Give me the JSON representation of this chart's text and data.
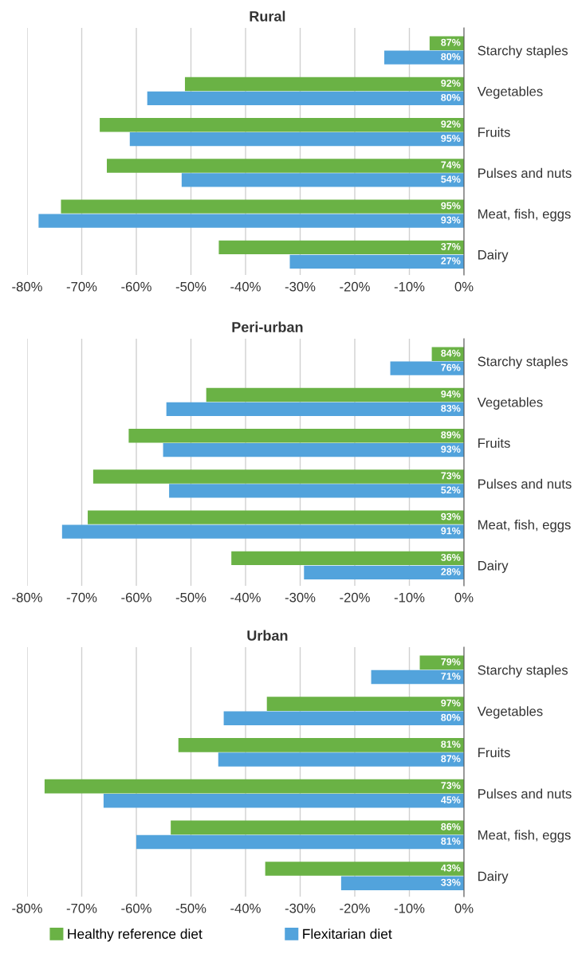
{
  "chart_data": [
    {
      "type": "bar",
      "orientation": "horizontal",
      "title": "Rural",
      "categories": [
        "Starchy staples",
        "Vegetables",
        "Fruits",
        "Pulses and nuts",
        "Meat, fish, eggs",
        "Dairy"
      ],
      "series": [
        {
          "name": "Healthy reference diet",
          "color": "#6ab245",
          "values": [
            -6.3,
            -51.1,
            -66.7,
            -65.4,
            -73.8,
            -44.9
          ]
        },
        {
          "name": "Flexitarian diet",
          "color": "#52a3dc",
          "values": [
            -14.6,
            -58.0,
            -61.2,
            -51.7,
            -77.9,
            -31.9
          ]
        }
      ],
      "annotations": [
        {
          "text": "87%",
          "y": "Starchy staples"
        },
        {
          "text": "80%",
          "y": "Starchy staples"
        },
        {
          "text": "92%",
          "y": "Vegetables"
        },
        {
          "text": "80%",
          "y": "Vegetables"
        },
        {
          "text": "92%",
          "y": "Fruits"
        },
        {
          "text": "95%",
          "y": "Fruits"
        },
        {
          "text": "74%",
          "y": "Pulses and nuts"
        },
        {
          "text": "54%",
          "y": "Pulses and nuts"
        },
        {
          "text": "95%",
          "y": "Meat, fish, eggs"
        },
        {
          "text": "93%",
          "y": "Meat, fish, eggs"
        },
        {
          "text": "37%",
          "y": "Dairy"
        },
        {
          "text": "27%",
          "y": "Dairy"
        }
      ],
      "xlim": [
        -80,
        0
      ],
      "xticks": [
        {
          "value": -80,
          "label": "-80%"
        },
        {
          "value": -70,
          "label": "-70%"
        },
        {
          "value": -60,
          "label": "-60%"
        },
        {
          "value": -50,
          "label": "-50%"
        },
        {
          "value": -40,
          "label": "-40%"
        },
        {
          "value": -30,
          "label": "-30%"
        },
        {
          "value": -20,
          "label": "-20%"
        },
        {
          "value": -10,
          "label": "-10%"
        },
        {
          "value": 0,
          "label": "0%"
        }
      ],
      "grid": "x",
      "legend": "bottom"
    },
    {
      "type": "bar",
      "orientation": "horizontal",
      "title": "Peri-urban",
      "categories": [
        "Starchy staples",
        "Vegetables",
        "Fruits",
        "Pulses and nuts",
        "Meat, fish, eggs",
        "Dairy"
      ],
      "series": [
        {
          "name": "Healthy reference diet",
          "color": "#6ab245",
          "values": [
            -5.9,
            -47.2,
            -61.4,
            -67.9,
            -68.9,
            -42.6
          ]
        },
        {
          "name": "Flexitarian diet",
          "color": "#52a3dc",
          "values": [
            -13.5,
            -54.5,
            -55.1,
            -54.0,
            -73.6,
            -29.3
          ]
        }
      ],
      "annotations": [
        {
          "text": "84%",
          "y": "Starchy staples"
        },
        {
          "text": "76%",
          "y": "Starchy staples"
        },
        {
          "text": "94%",
          "y": "Vegetables"
        },
        {
          "text": "83%",
          "y": "Vegetables"
        },
        {
          "text": "89%",
          "y": "Fruits"
        },
        {
          "text": "93%",
          "y": "Fruits"
        },
        {
          "text": "73%",
          "y": "Pulses and nuts"
        },
        {
          "text": "52%",
          "y": "Pulses and nuts"
        },
        {
          "text": "93%",
          "y": "Meat, fish, eggs"
        },
        {
          "text": "91%",
          "y": "Meat, fish, eggs"
        },
        {
          "text": "36%",
          "y": "Dairy"
        },
        {
          "text": "28%",
          "y": "Dairy"
        }
      ],
      "xlim": [
        -80,
        0
      ],
      "xticks": [
        {
          "value": -80,
          "label": "-80%"
        },
        {
          "value": -70,
          "label": "-70%"
        },
        {
          "value": -60,
          "label": "-60%"
        },
        {
          "value": -50,
          "label": "-50%"
        },
        {
          "value": -40,
          "label": "-40%"
        },
        {
          "value": -30,
          "label": "-30%"
        },
        {
          "value": -20,
          "label": "-20%"
        },
        {
          "value": -10,
          "label": "-10%"
        },
        {
          "value": 0,
          "label": "0%"
        }
      ],
      "grid": "x",
      "legend": "bottom"
    },
    {
      "type": "bar",
      "orientation": "horizontal",
      "title": "Urban",
      "categories": [
        "Starchy staples",
        "Vegetables",
        "Fruits",
        "Pulses and nuts",
        "Meat, fish, eggs",
        "Dairy"
      ],
      "series": [
        {
          "name": "Healthy reference diet",
          "color": "#6ab245",
          "values": [
            -8.1,
            -36.1,
            -52.3,
            -76.8,
            -53.7,
            -36.4
          ]
        },
        {
          "name": "Flexitarian diet",
          "color": "#52a3dc",
          "values": [
            -17.0,
            -44.0,
            -45.0,
            -66.0,
            -60.0,
            -22.5
          ]
        }
      ],
      "annotations": [
        {
          "text": "79%",
          "y": "Starchy staples"
        },
        {
          "text": "71%",
          "y": "Starchy staples"
        },
        {
          "text": "97%",
          "y": "Vegetables"
        },
        {
          "text": "80%",
          "y": "Vegetables"
        },
        {
          "text": "81%",
          "y": "Fruits"
        },
        {
          "text": "87%",
          "y": "Fruits"
        },
        {
          "text": "73%",
          "y": "Pulses and nuts"
        },
        {
          "text": "45%",
          "y": "Pulses and nuts"
        },
        {
          "text": "86%",
          "y": "Meat, fish, eggs"
        },
        {
          "text": "81%",
          "y": "Meat, fish, eggs"
        },
        {
          "text": "43%",
          "y": "Dairy"
        },
        {
          "text": "33%",
          "y": "Dairy"
        }
      ],
      "xlim": [
        -80,
        0
      ],
      "xticks": [
        {
          "value": -80,
          "label": "-80%"
        },
        {
          "value": -70,
          "label": "-70%"
        },
        {
          "value": -60,
          "label": "-60%"
        },
        {
          "value": -50,
          "label": "-50%"
        },
        {
          "value": -40,
          "label": "-40%"
        },
        {
          "value": -30,
          "label": "-30%"
        },
        {
          "value": -20,
          "label": "-20%"
        },
        {
          "value": -10,
          "label": "-10%"
        },
        {
          "value": 0,
          "label": "0%"
        }
      ],
      "grid": "x",
      "legend": "bottom"
    }
  ]
}
